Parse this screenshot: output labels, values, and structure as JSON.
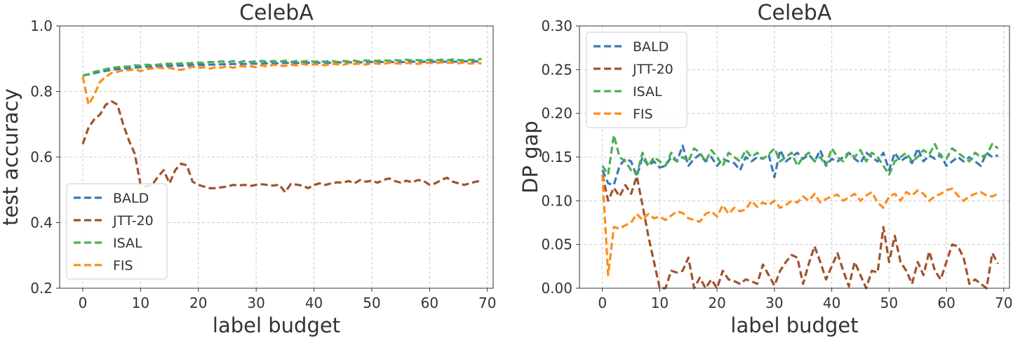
{
  "chart_data": [
    {
      "type": "line",
      "title": "CelebA",
      "xlabel": "label budget",
      "ylabel": "test accuracy",
      "xlim": [
        -4,
        71
      ],
      "ylim": [
        0.2,
        1.0
      ],
      "xticks": [
        0,
        10,
        20,
        30,
        40,
        50,
        60,
        70
      ],
      "xtick_labels": [
        "0",
        "10",
        "20",
        "30",
        "40",
        "50",
        "60",
        "70"
      ],
      "yticks": [
        0.2,
        0.4,
        0.6,
        0.8,
        1.0
      ],
      "ytick_labels": [
        "0.2",
        "0.4",
        "0.6",
        "0.8",
        "1.0"
      ],
      "grid": true,
      "legend_position": "lower-left",
      "series": [
        {
          "name": "BALD",
          "color": "#3a7ab5",
          "values": [
            0.849,
            0.852,
            0.856,
            0.86,
            0.863,
            0.866,
            0.868,
            0.87,
            0.871,
            0.873,
            0.874,
            0.876,
            0.876,
            0.877,
            0.878,
            0.878,
            0.879,
            0.879,
            0.88,
            0.88,
            0.881,
            0.881,
            0.882,
            0.882,
            0.883,
            0.883,
            0.884,
            0.884,
            0.884,
            0.885,
            0.885,
            0.885,
            0.886,
            0.886,
            0.886,
            0.887,
            0.887,
            0.887,
            0.887,
            0.888,
            0.888,
            0.888,
            0.888,
            0.888,
            0.889,
            0.889,
            0.889,
            0.889,
            0.889,
            0.889,
            0.89,
            0.89,
            0.89,
            0.89,
            0.89,
            0.89,
            0.89,
            0.891,
            0.891,
            0.891,
            0.891,
            0.891,
            0.891,
            0.891,
            0.891,
            0.891,
            0.892,
            0.892,
            0.892,
            0.892
          ]
        },
        {
          "name": "JTT-20",
          "color": "#a0522d",
          "values": [
            0.64,
            0.69,
            0.715,
            0.73,
            0.76,
            0.77,
            0.76,
            0.7,
            0.65,
            0.61,
            0.515,
            0.51,
            0.515,
            0.54,
            0.56,
            0.52,
            0.56,
            0.58,
            0.575,
            0.525,
            0.515,
            0.51,
            0.505,
            0.505,
            0.508,
            0.51,
            0.515,
            0.514,
            0.515,
            0.512,
            0.515,
            0.517,
            0.515,
            0.513,
            0.516,
            0.493,
            0.518,
            0.516,
            0.513,
            0.505,
            0.515,
            0.52,
            0.515,
            0.52,
            0.523,
            0.522,
            0.527,
            0.52,
            0.53,
            0.525,
            0.528,
            0.522,
            0.53,
            0.535,
            0.527,
            0.522,
            0.528,
            0.523,
            0.53,
            0.527,
            0.515,
            0.52,
            0.53,
            0.537,
            0.525,
            0.52,
            0.515,
            0.52,
            0.525,
            0.528
          ]
        },
        {
          "name": "ISAL",
          "color": "#4caf50",
          "values": [
            0.848,
            0.853,
            0.86,
            0.864,
            0.868,
            0.872,
            0.874,
            0.876,
            0.876,
            0.88,
            0.879,
            0.882,
            0.88,
            0.882,
            0.884,
            0.885,
            0.884,
            0.886,
            0.886,
            0.887,
            0.888,
            0.887,
            0.89,
            0.889,
            0.892,
            0.889,
            0.893,
            0.889,
            0.893,
            0.89,
            0.892,
            0.893,
            0.891,
            0.893,
            0.891,
            0.894,
            0.89,
            0.893,
            0.891,
            0.894,
            0.891,
            0.892,
            0.891,
            0.894,
            0.89,
            0.893,
            0.892,
            0.894,
            0.891,
            0.895,
            0.893,
            0.894,
            0.895,
            0.894,
            0.896,
            0.894,
            0.897,
            0.895,
            0.896,
            0.894,
            0.897,
            0.895,
            0.897,
            0.895,
            0.898,
            0.896,
            0.895,
            0.897,
            0.896,
            0.9
          ]
        },
        {
          "name": "FIS",
          "color": "#ff8c1a",
          "values": [
            0.846,
            0.76,
            0.79,
            0.83,
            0.845,
            0.857,
            0.86,
            0.865,
            0.865,
            0.868,
            0.862,
            0.868,
            0.87,
            0.873,
            0.871,
            0.872,
            0.868,
            0.866,
            0.87,
            0.876,
            0.872,
            0.874,
            0.87,
            0.874,
            0.873,
            0.877,
            0.872,
            0.879,
            0.876,
            0.877,
            0.874,
            0.88,
            0.876,
            0.882,
            0.879,
            0.878,
            0.882,
            0.88,
            0.884,
            0.881,
            0.883,
            0.882,
            0.88,
            0.885,
            0.883,
            0.881,
            0.886,
            0.884,
            0.885,
            0.882,
            0.887,
            0.885,
            0.884,
            0.888,
            0.886,
            0.885,
            0.887,
            0.886,
            0.884,
            0.888,
            0.887,
            0.886,
            0.889,
            0.887,
            0.888,
            0.886,
            0.889,
            0.885,
            0.887,
            0.886
          ]
        }
      ]
    },
    {
      "type": "line",
      "title": "CelebA",
      "xlabel": "label budget",
      "ylabel": "DP gap",
      "xlim": [
        -4,
        71
      ],
      "ylim": [
        0.0,
        0.3
      ],
      "xticks": [
        0,
        10,
        20,
        30,
        40,
        50,
        60,
        70
      ],
      "xtick_labels": [
        "0",
        "10",
        "20",
        "30",
        "40",
        "50",
        "60",
        "70"
      ],
      "yticks": [
        0.0,
        0.05,
        0.1,
        0.15,
        0.2,
        0.25,
        0.3
      ],
      "ytick_labels": [
        "0.00",
        "0.05",
        "0.10",
        "0.15",
        "0.20",
        "0.25",
        "0.30"
      ],
      "grid": true,
      "legend_position": "top-left",
      "series": [
        {
          "name": "BALD",
          "color": "#3a7ab5",
          "values": [
            0.135,
            0.12,
            0.118,
            0.14,
            0.148,
            0.145,
            0.128,
            0.15,
            0.14,
            0.145,
            0.138,
            0.14,
            0.15,
            0.145,
            0.163,
            0.14,
            0.148,
            0.153,
            0.145,
            0.15,
            0.14,
            0.148,
            0.145,
            0.143,
            0.135,
            0.15,
            0.145,
            0.15,
            0.148,
            0.153,
            0.127,
            0.158,
            0.145,
            0.15,
            0.155,
            0.148,
            0.153,
            0.145,
            0.158,
            0.14,
            0.148,
            0.145,
            0.15,
            0.155,
            0.148,
            0.143,
            0.155,
            0.15,
            0.145,
            0.155,
            0.135,
            0.155,
            0.145,
            0.15,
            0.143,
            0.16,
            0.145,
            0.152,
            0.148,
            0.153,
            0.14,
            0.145,
            0.15,
            0.145,
            0.15,
            0.145,
            0.14,
            0.155,
            0.15,
            0.152
          ]
        },
        {
          "name": "JTT-20",
          "color": "#a0522d",
          "values": [
            0.13,
            0.1,
            0.115,
            0.105,
            0.118,
            0.108,
            0.128,
            0.095,
            0.06,
            0.03,
            0.0,
            0.0,
            0.02,
            0.018,
            0.02,
            0.035,
            0.0,
            0.012,
            0.0,
            0.01,
            0.0,
            0.02,
            0.01,
            0.008,
            0.005,
            0.01,
            0.008,
            0.005,
            0.027,
            0.015,
            0.003,
            0.02,
            0.03,
            0.038,
            0.035,
            0.005,
            0.028,
            0.048,
            0.03,
            0.01,
            0.025,
            0.04,
            0.02,
            0.002,
            0.03,
            0.015,
            0.0,
            0.02,
            0.018,
            0.07,
            0.03,
            0.06,
            0.03,
            0.02,
            0.005,
            0.03,
            0.015,
            0.042,
            0.02,
            0.01,
            0.03,
            0.05,
            0.048,
            0.035,
            0.005,
            0.01,
            0.005,
            0.0,
            0.04,
            0.028
          ]
        },
        {
          "name": "ISAL",
          "color": "#4caf50",
          "values": [
            0.14,
            0.13,
            0.175,
            0.15,
            0.145,
            0.135,
            0.13,
            0.155,
            0.14,
            0.15,
            0.145,
            0.14,
            0.155,
            0.145,
            0.15,
            0.145,
            0.16,
            0.155,
            0.145,
            0.158,
            0.15,
            0.14,
            0.155,
            0.15,
            0.145,
            0.158,
            0.15,
            0.155,
            0.148,
            0.153,
            0.16,
            0.145,
            0.15,
            0.155,
            0.14,
            0.15,
            0.155,
            0.145,
            0.15,
            0.14,
            0.16,
            0.15,
            0.145,
            0.155,
            0.15,
            0.158,
            0.145,
            0.155,
            0.15,
            0.14,
            0.13,
            0.145,
            0.15,
            0.155,
            0.145,
            0.15,
            0.158,
            0.153,
            0.165,
            0.15,
            0.148,
            0.16,
            0.155,
            0.15,
            0.145,
            0.155,
            0.15,
            0.153,
            0.165,
            0.16
          ]
        },
        {
          "name": "FIS",
          "color": "#ff8c1a",
          "values": [
            0.13,
            0.015,
            0.07,
            0.068,
            0.072,
            0.075,
            0.085,
            0.078,
            0.085,
            0.08,
            0.082,
            0.078,
            0.083,
            0.088,
            0.086,
            0.08,
            0.078,
            0.076,
            0.085,
            0.088,
            0.082,
            0.095,
            0.085,
            0.092,
            0.088,
            0.09,
            0.1,
            0.093,
            0.098,
            0.095,
            0.1,
            0.092,
            0.095,
            0.1,
            0.098,
            0.105,
            0.1,
            0.108,
            0.098,
            0.102,
            0.105,
            0.107,
            0.1,
            0.104,
            0.108,
            0.1,
            0.106,
            0.11,
            0.098,
            0.092,
            0.105,
            0.108,
            0.1,
            0.11,
            0.106,
            0.112,
            0.108,
            0.1,
            0.105,
            0.108,
            0.112,
            0.114,
            0.106,
            0.1,
            0.105,
            0.108,
            0.11,
            0.106,
            0.105,
            0.108
          ]
        }
      ]
    }
  ]
}
